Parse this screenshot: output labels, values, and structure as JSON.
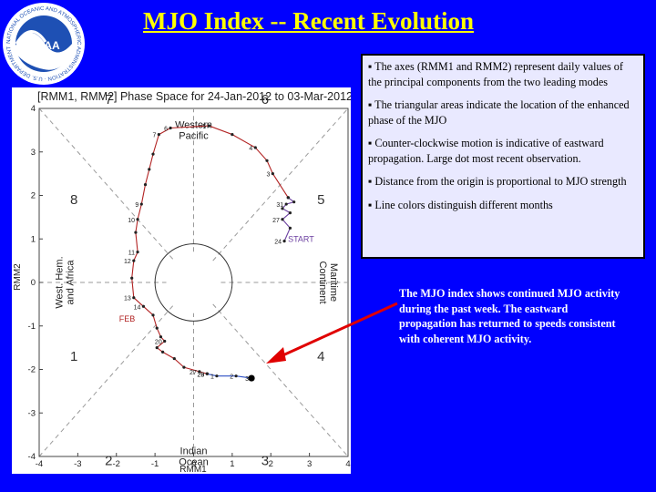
{
  "logo": {
    "text": "NOAA",
    "ring_text": "NATIONAL OCEANIC AND ATMOSPHERIC ADMINISTRATION · U.S. DEPARTMENT OF COMMERCE"
  },
  "title": "MJO Index -- Recent Evolution",
  "bullets": [
    "▪ The axes (RMM1 and RMM2) represent daily values of the principal components from the two leading modes",
    "▪ The triangular areas indicate the location of the enhanced phase of the MJO",
    "▪ Counter-clockwise motion is indicative of eastward propagation. Large dot most recent observation.",
    "▪ Distance from the origin is proportional to MJO strength",
    "▪ Line colors distinguish different months"
  ],
  "note": "The MJO index shows continued MJO activity during the past week. The eastward propagation has returned to speeds consistent with coherent MJO activity.",
  "chart_data": {
    "type": "line",
    "title": "[RMM1, RMM2] Phase Space for 24-Jan-2012 to 03-Mar-2012",
    "xlabel": "RMM1",
    "ylabel": "RMM2",
    "xlim": [
      -4,
      4
    ],
    "ylim": [
      -4,
      4
    ],
    "xticks": [
      "-4",
      "-3",
      "-2",
      "-1",
      "0",
      "1",
      "2",
      "3",
      "4"
    ],
    "yticks": [
      "-4",
      "-3",
      "-2",
      "-1",
      "0",
      "1",
      "2",
      "3",
      "4"
    ],
    "phases": [
      "1",
      "2",
      "3",
      "4",
      "5",
      "6",
      "7",
      "8"
    ],
    "regions": [
      "Western Pacific",
      "Indian Ocean",
      "Maritime Continent",
      "West. Hem. and Africa"
    ],
    "start_label": "START",
    "month_label": "FEB",
    "colors": {
      "jan": "#6b3fa0",
      "feb": "#b22222",
      "mar": "#2c4fc4",
      "grid": "#9a9a9a"
    },
    "series": [
      {
        "month": "Jan",
        "points": [
          [
            2.35,
            0.95
          ],
          [
            2.5,
            1.25
          ],
          [
            2.3,
            1.45
          ],
          [
            2.5,
            1.6
          ],
          [
            2.3,
            1.7
          ],
          [
            2.4,
            1.8
          ],
          [
            2.6,
            1.85
          ],
          [
            2.45,
            1.95
          ]
        ],
        "labels": [
          "24",
          "",
          "27",
          "",
          "",
          "31",
          "",
          ""
        ]
      },
      {
        "month": "Feb",
        "points": [
          [
            2.45,
            1.95
          ],
          [
            2.05,
            2.5
          ],
          [
            1.9,
            2.8
          ],
          [
            1.6,
            3.1
          ],
          [
            1.0,
            3.4
          ],
          [
            0.4,
            3.6
          ],
          [
            -0.6,
            3.55
          ],
          [
            -0.9,
            3.4
          ],
          [
            -1.05,
            2.95
          ],
          [
            -1.15,
            2.6
          ],
          [
            -1.25,
            2.25
          ],
          [
            -1.35,
            1.8
          ],
          [
            -1.45,
            1.45
          ],
          [
            -1.5,
            1.15
          ],
          [
            -1.45,
            0.7
          ],
          [
            -1.55,
            0.5
          ],
          [
            -1.6,
            0.1
          ],
          [
            -1.55,
            -0.35
          ],
          [
            -1.3,
            -0.55
          ],
          [
            -1.05,
            -0.75
          ],
          [
            -0.95,
            -1.05
          ],
          [
            -0.85,
            -1.25
          ],
          [
            -0.75,
            -1.35
          ],
          [
            -0.95,
            -1.5
          ],
          [
            -0.8,
            -1.6
          ],
          [
            -0.5,
            -1.75
          ],
          [
            -0.25,
            -1.95
          ],
          [
            0.15,
            -2.05
          ],
          [
            0.35,
            -2.1
          ]
        ],
        "labels": [
          "",
          "3",
          "",
          "4",
          "",
          "5",
          "6",
          "7",
          "",
          "",
          "",
          "9",
          "10",
          "",
          "11",
          "12",
          "",
          "13",
          "14",
          "",
          "",
          "",
          "20",
          "",
          "",
          "",
          "",
          "27",
          "28"
        ]
      },
      {
        "month": "Mar",
        "points": [
          [
            0.35,
            -2.1
          ],
          [
            0.6,
            -2.15
          ],
          [
            1.1,
            -2.15
          ],
          [
            1.5,
            -2.2
          ]
        ],
        "labels": [
          "29",
          "1",
          "2",
          "3"
        ]
      }
    ]
  }
}
